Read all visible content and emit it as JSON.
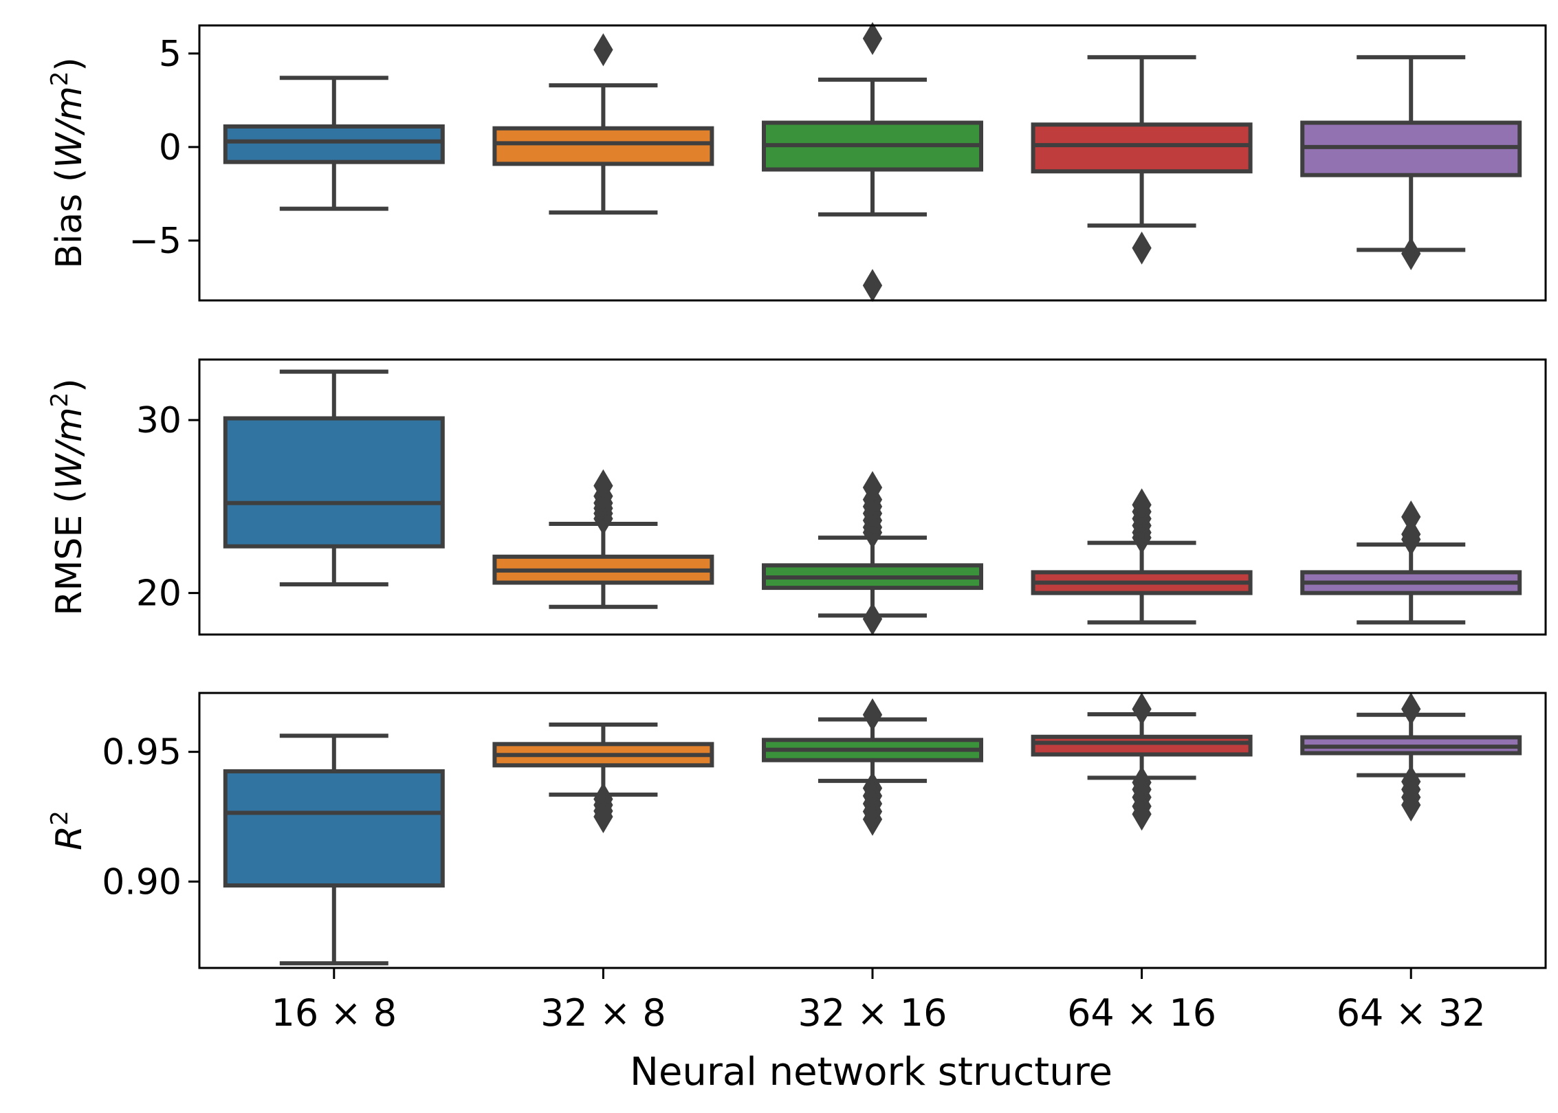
{
  "chart_data": {
    "type": "boxplot",
    "xlabel": "Neural network structure",
    "categories": [
      "16 × 8",
      "32 × 8",
      "32 × 16",
      "64 × 16",
      "64 × 32"
    ],
    "colors": [
      "#3274a1",
      "#e1812c",
      "#3a923a",
      "#c03d3e",
      "#9372b2"
    ],
    "edge_color": "#3f3f3f",
    "panels": [
      {
        "id": "bias",
        "ylabel_main": "Bias (",
        "ylabel_unit": "W/m",
        "ylabel_sup": "2",
        "ylabel_close": ")",
        "ylim": [
          -8.2,
          6.5
        ],
        "yticks": [
          5,
          0,
          -5
        ],
        "ytick_labels": [
          "5",
          "0",
          "−5"
        ],
        "boxes": [
          {
            "whislo": -3.3,
            "q1": -0.8,
            "med": 0.3,
            "q3": 1.1,
            "whishi": 3.7,
            "fliers": []
          },
          {
            "whislo": -3.5,
            "q1": -0.9,
            "med": 0.2,
            "q3": 1.0,
            "whishi": 3.3,
            "fliers": [
              5.2
            ]
          },
          {
            "whislo": -3.6,
            "q1": -1.2,
            "med": 0.1,
            "q3": 1.3,
            "whishi": 3.6,
            "fliers": [
              5.8,
              -7.4
            ]
          },
          {
            "whislo": -4.2,
            "q1": -1.3,
            "med": 0.1,
            "q3": 1.2,
            "whishi": 4.8,
            "fliers": [
              -5.4
            ]
          },
          {
            "whislo": -5.5,
            "q1": -1.5,
            "med": 0.0,
            "q3": 1.3,
            "whishi": 4.8,
            "fliers": [
              -5.7
            ]
          }
        ]
      },
      {
        "id": "rmse",
        "ylabel_main": "RMSE (",
        "ylabel_unit": "W/m",
        "ylabel_sup": "2",
        "ylabel_close": ")",
        "ylim": [
          17.6,
          33.5
        ],
        "yticks": [
          30,
          20
        ],
        "ytick_labels": [
          "30",
          "20"
        ],
        "boxes": [
          {
            "whislo": 20.5,
            "q1": 22.7,
            "med": 25.2,
            "q3": 30.1,
            "whishi": 32.8,
            "fliers": []
          },
          {
            "whislo": 19.2,
            "q1": 20.6,
            "med": 21.3,
            "q3": 22.1,
            "whishi": 24.0,
            "fliers": [
              24.3,
              24.6,
              24.9,
              25.2,
              25.6,
              26.2
            ]
          },
          {
            "whislo": 18.7,
            "q1": 20.3,
            "med": 20.9,
            "q3": 21.6,
            "whishi": 23.2,
            "fliers": [
              23.5,
              23.8,
              24.2,
              24.6,
              25.0,
              25.4,
              26.1,
              18.5
            ]
          },
          {
            "whislo": 18.3,
            "q1": 20.0,
            "med": 20.6,
            "q3": 21.2,
            "whishi": 22.9,
            "fliers": [
              23.2,
              23.5,
              23.9,
              24.3,
              24.7,
              25.1
            ]
          },
          {
            "whislo": 18.3,
            "q1": 20.0,
            "med": 20.6,
            "q3": 21.2,
            "whishi": 22.8,
            "fliers": [
              23.1,
              23.4,
              24.4
            ]
          }
        ]
      },
      {
        "id": "r2",
        "ylabel_main": "R",
        "ylabel_unit": "",
        "ylabel_sup": "2",
        "ylabel_close": "",
        "ylim": [
          0.8667,
          0.9727
        ],
        "yticks": [
          0.95,
          0.9
        ],
        "ytick_labels": [
          "0.95",
          "0.90"
        ],
        "boxes": [
          {
            "whislo": 0.8685,
            "q1": 0.8985,
            "med": 0.9265,
            "q3": 0.9425,
            "whishi": 0.9562,
            "fliers": []
          },
          {
            "whislo": 0.9335,
            "q1": 0.9448,
            "med": 0.9488,
            "q3": 0.953,
            "whishi": 0.9605,
            "fliers": [
              0.9318,
              0.9295,
              0.9272,
              0.925
            ]
          },
          {
            "whislo": 0.9388,
            "q1": 0.9468,
            "med": 0.9508,
            "q3": 0.9546,
            "whishi": 0.9625,
            "fliers": [
              0.9643,
              0.936,
              0.933,
              0.93,
              0.927,
              0.924
            ]
          },
          {
            "whislo": 0.94,
            "q1": 0.949,
            "med": 0.9535,
            "q3": 0.9558,
            "whishi": 0.9645,
            "fliers": [
              0.9665,
              0.9382,
              0.9355,
              0.9325,
              0.929,
              0.926
            ]
          },
          {
            "whislo": 0.941,
            "q1": 0.9495,
            "med": 0.952,
            "q3": 0.9556,
            "whishi": 0.9643,
            "fliers": [
              0.9665,
              0.9385,
              0.9355,
              0.9325,
              0.9295
            ]
          }
        ]
      }
    ]
  }
}
